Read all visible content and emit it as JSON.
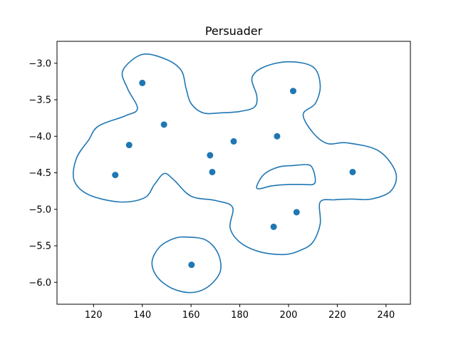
{
  "chart_data": {
    "type": "scatter",
    "title": "Persuader",
    "xlabel": "",
    "ylabel": "",
    "xlim": [
      105,
      250
    ],
    "ylim": [
      -6.3,
      -2.7
    ],
    "xticks": [
      120,
      140,
      160,
      180,
      200,
      220,
      240
    ],
    "yticks": [
      -3.0,
      -3.5,
      -4.0,
      -4.5,
      -5.0,
      -5.5,
      -6.0
    ],
    "xtick_labels": [
      "120",
      "140",
      "160",
      "180",
      "200",
      "220",
      "240"
    ],
    "ytick_labels": [
      "−3.0",
      "−3.5",
      "−4.0",
      "−4.5",
      "−5.0",
      "−5.5",
      "−6.0"
    ],
    "grid": false,
    "color": "#1f77b4",
    "points": [
      {
        "x": 140.0,
        "y": -3.27
      },
      {
        "x": 148.9,
        "y": -3.84
      },
      {
        "x": 134.6,
        "y": -4.12
      },
      {
        "x": 128.9,
        "y": -4.53
      },
      {
        "x": 167.8,
        "y": -4.26
      },
      {
        "x": 168.7,
        "y": -4.49
      },
      {
        "x": 177.5,
        "y": -4.07
      },
      {
        "x": 195.3,
        "y": -4.0
      },
      {
        "x": 201.9,
        "y": -3.38
      },
      {
        "x": 226.3,
        "y": -4.49
      },
      {
        "x": 203.3,
        "y": -5.04
      },
      {
        "x": 193.9,
        "y": -5.24
      },
      {
        "x": 160.2,
        "y": -5.76
      }
    ],
    "contours": [
      [
        [
          140,
          -2.88
        ],
        [
          150,
          -2.95
        ],
        [
          156,
          -3.1
        ],
        [
          158,
          -3.35
        ],
        [
          160,
          -3.55
        ],
        [
          165,
          -3.68
        ],
        [
          172,
          -3.68
        ],
        [
          180,
          -3.66
        ],
        [
          186,
          -3.6
        ],
        [
          187,
          -3.45
        ],
        [
          185,
          -3.2
        ],
        [
          190,
          -3.05
        ],
        [
          200,
          -2.98
        ],
        [
          210,
          -3.05
        ],
        [
          213,
          -3.3
        ],
        [
          211,
          -3.55
        ],
        [
          206,
          -3.7
        ],
        [
          210,
          -3.95
        ],
        [
          216,
          -4.1
        ],
        [
          224,
          -4.09
        ],
        [
          237,
          -4.2
        ],
        [
          244,
          -4.5
        ],
        [
          242,
          -4.75
        ],
        [
          234,
          -4.86
        ],
        [
          226,
          -4.86
        ],
        [
          219,
          -4.87
        ],
        [
          213,
          -4.9
        ],
        [
          213,
          -5.2
        ],
        [
          210,
          -5.45
        ],
        [
          205,
          -5.56
        ],
        [
          198,
          -5.62
        ],
        [
          188,
          -5.58
        ],
        [
          180,
          -5.45
        ],
        [
          176,
          -5.25
        ],
        [
          177,
          -4.97
        ],
        [
          170,
          -4.88
        ],
        [
          160,
          -4.82
        ],
        [
          153,
          -4.6
        ],
        [
          149,
          -4.51
        ],
        [
          145,
          -4.66
        ],
        [
          141,
          -4.84
        ],
        [
          131,
          -4.9
        ],
        [
          118,
          -4.8
        ],
        [
          112,
          -4.6
        ],
        [
          113,
          -4.3
        ],
        [
          118,
          -4.05
        ],
        [
          122,
          -3.86
        ],
        [
          133,
          -3.72
        ],
        [
          138,
          -3.62
        ],
        [
          134,
          -3.35
        ],
        [
          132,
          -3.1
        ],
        [
          140,
          -2.88
        ]
      ],
      [
        [
          188,
          -4.72
        ],
        [
          193,
          -4.68
        ],
        [
          200,
          -4.66
        ],
        [
          206,
          -4.66
        ],
        [
          210,
          -4.66
        ],
        [
          211,
          -4.6
        ],
        [
          210,
          -4.45
        ],
        [
          208,
          -4.39
        ],
        [
          202,
          -4.4
        ],
        [
          196,
          -4.42
        ],
        [
          190,
          -4.52
        ],
        [
          187,
          -4.68
        ],
        [
          188,
          -4.72
        ]
      ],
      [
        [
          158,
          -5.38
        ],
        [
          166,
          -5.42
        ],
        [
          171,
          -5.6
        ],
        [
          172,
          -5.85
        ],
        [
          167,
          -6.06
        ],
        [
          160,
          -6.14
        ],
        [
          152,
          -6.08
        ],
        [
          146,
          -5.92
        ],
        [
          144,
          -5.72
        ],
        [
          147,
          -5.52
        ],
        [
          153,
          -5.4
        ],
        [
          158,
          -5.38
        ]
      ]
    ]
  }
}
